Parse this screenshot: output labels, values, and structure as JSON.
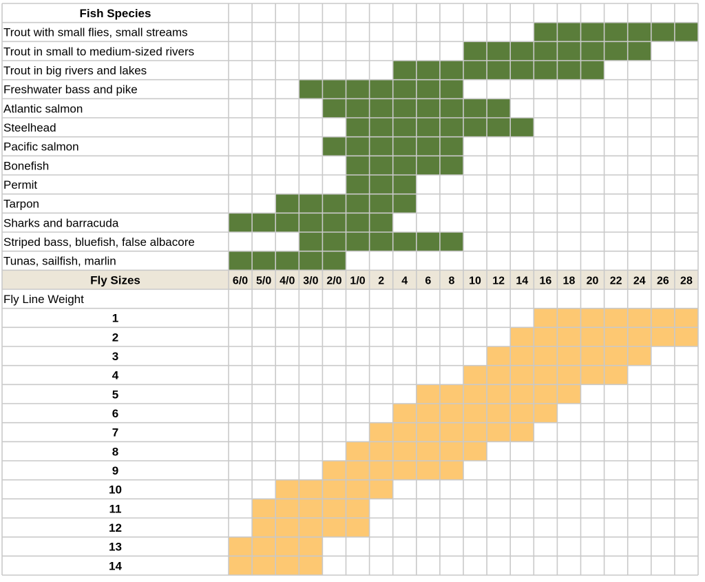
{
  "chart_data": {
    "type": "table",
    "fish_header": "Fish Species",
    "sizes_header": "Fly Sizes",
    "weights_header": "Fly Line Weight",
    "fly_sizes": [
      "6/0",
      "5/0",
      "4/0",
      "3/0",
      "2/0",
      "1/0",
      "2",
      "4",
      "6",
      "8",
      "10",
      "12",
      "14",
      "16",
      "18",
      "20",
      "22",
      "24",
      "26",
      "28"
    ],
    "species": [
      {
        "name": "Trout with small flies, small streams",
        "sizes": [
          "16",
          "28"
        ]
      },
      {
        "name": "Trout in small to medium-sized rivers",
        "sizes": [
          "10",
          "24"
        ]
      },
      {
        "name": "Trout in big rivers and lakes",
        "sizes": [
          "4",
          "20"
        ]
      },
      {
        "name": "Freshwater bass and pike",
        "sizes": [
          "3/0",
          "8"
        ]
      },
      {
        "name": "Atlantic salmon",
        "sizes": [
          "2/0",
          "12"
        ]
      },
      {
        "name": "Steelhead",
        "sizes": [
          "1/0",
          "14"
        ]
      },
      {
        "name": "Pacific salmon",
        "sizes": [
          "2/0",
          "8"
        ]
      },
      {
        "name": "Bonefish",
        "sizes": [
          "1/0",
          "8"
        ]
      },
      {
        "name": "Permit",
        "sizes": [
          "1/0",
          "4"
        ]
      },
      {
        "name": "Tarpon",
        "sizes": [
          "4/0",
          "4"
        ]
      },
      {
        "name": "Sharks and barracuda",
        "sizes": [
          "6/0",
          "2"
        ]
      },
      {
        "name": "Striped bass, bluefish, false albacore",
        "sizes": [
          "3/0",
          "8"
        ]
      },
      {
        "name": "Tunas, sailfish, marlin",
        "sizes": [
          "6/0",
          "2/0"
        ]
      }
    ],
    "line_weights": [
      {
        "name": "1",
        "sizes": [
          "16",
          "28"
        ]
      },
      {
        "name": "2",
        "sizes": [
          "14",
          "28"
        ]
      },
      {
        "name": "3",
        "sizes": [
          "12",
          "24"
        ]
      },
      {
        "name": "4",
        "sizes": [
          "10",
          "22"
        ]
      },
      {
        "name": "5",
        "sizes": [
          "6",
          "18"
        ]
      },
      {
        "name": "6",
        "sizes": [
          "4",
          "16"
        ]
      },
      {
        "name": "7",
        "sizes": [
          "2",
          "14"
        ]
      },
      {
        "name": "8",
        "sizes": [
          "1/0",
          "10"
        ]
      },
      {
        "name": "9",
        "sizes": [
          "2/0",
          "8"
        ]
      },
      {
        "name": "10",
        "sizes": [
          "4/0",
          "2"
        ]
      },
      {
        "name": "11",
        "sizes": [
          "5/0",
          "1/0"
        ]
      },
      {
        "name": "12",
        "sizes": [
          "5/0",
          "1/0"
        ]
      },
      {
        "name": "13",
        "sizes": [
          "6/0",
          "3/0"
        ]
      },
      {
        "name": "14",
        "sizes": [
          "6/0",
          "3/0"
        ]
      }
    ]
  },
  "colors": {
    "species_fill": "#5a7d3a",
    "weight_fill": "#fdc872",
    "grid": "#c9c9c9",
    "header_band": "#ece6d8"
  }
}
